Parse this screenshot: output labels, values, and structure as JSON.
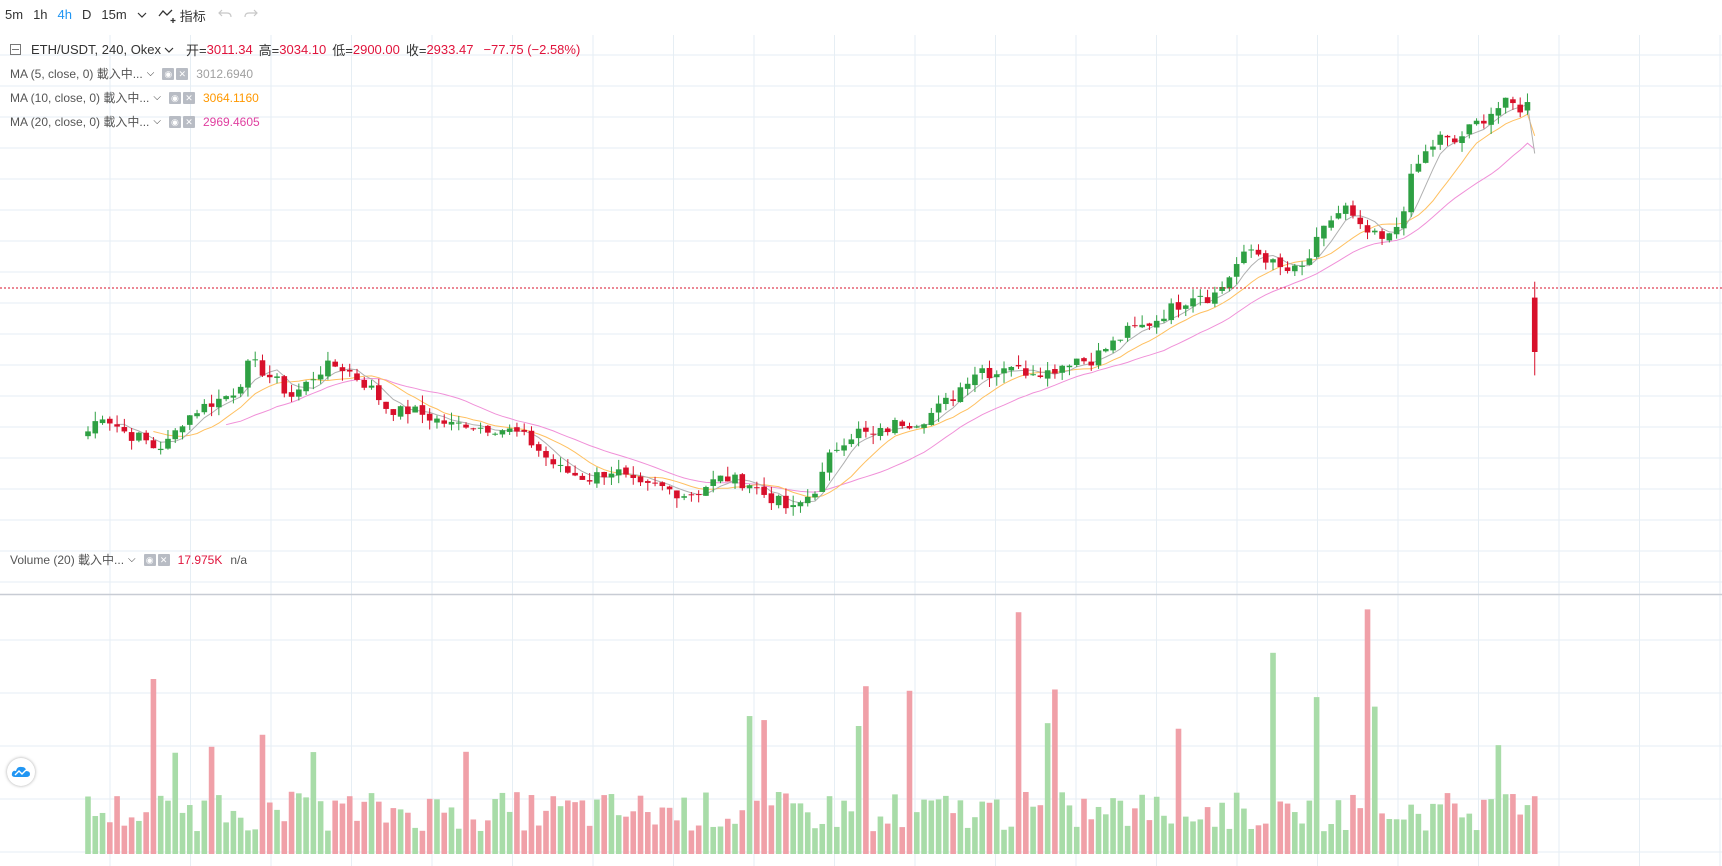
{
  "toolbar": {
    "intervals": [
      "5m",
      "1h",
      "4h",
      "D"
    ],
    "active_interval": "4h",
    "custom_interval": "15m",
    "indicators_label": "指标"
  },
  "legend": {
    "symbol": "ETH/USDT, 240, Okex",
    "open_label": "开=",
    "open": "3011.34",
    "high_label": "高=",
    "high": "3034.10",
    "low_label": "低=",
    "low": "2900.00",
    "close_label": "收=",
    "close": "2933.47",
    "change": "−77.75 (−2.58%)",
    "indicators": [
      {
        "label": "MA (5, close, 0) 載入中...",
        "value": "3012.6940",
        "color": "#a0a0a0"
      },
      {
        "label": "MA (10, close, 0) 載入中...",
        "value": "3064.1160",
        "color": "#ff9800"
      },
      {
        "label": "MA (20, close, 0) 載入中...",
        "value": "2969.4605",
        "color": "#e040a0"
      }
    ],
    "volume": {
      "label": "Volume (20) 載入中...",
      "value": "17.975K",
      "extra": "n/a",
      "value_color": "#e0143c"
    }
  },
  "colors": {
    "up": "#2ea043",
    "down": "#d8102b",
    "vol_up": "#a8dca8",
    "vol_down": "#f0a0a8",
    "grid": "#e6eef4"
  },
  "chart_data": {
    "type": "candlestick",
    "series": [
      {
        "name": "ETH/USDT",
        "type": "ohlc",
        "points": []
      },
      {
        "name": "MA (5, close, 0)",
        "type": "line"
      },
      {
        "name": "MA (10, close, 0)",
        "type": "line"
      },
      {
        "name": "MA (20, close, 0)",
        "type": "line"
      },
      {
        "name": "Volume (20)",
        "type": "bar"
      }
    ],
    "close_path": [
      2820,
      2845,
      2830,
      2815,
      2810,
      2795,
      2805,
      2835,
      2850,
      2860,
      2868,
      2880,
      2920,
      2905,
      2890,
      2870,
      2885,
      2905,
      2915,
      2910,
      2895,
      2880,
      2855,
      2848,
      2850,
      2842,
      2835,
      2828,
      2832,
      2826,
      2825,
      2822,
      2815,
      2800,
      2780,
      2765,
      2758,
      2752,
      2760,
      2765,
      2748,
      2738,
      2742,
      2736,
      2730,
      2733,
      2746,
      2754,
      2749,
      2745,
      2730,
      2720,
      2705,
      2722,
      2742,
      2790,
      2810,
      2820,
      2812,
      2822,
      2834,
      2832,
      2840,
      2855,
      2870,
      2895,
      2912,
      2900,
      2920,
      2905,
      2908,
      2905,
      2915,
      2925,
      2920,
      2935,
      2948,
      2965,
      2970,
      2980,
      2995,
      3005,
      3020,
      3010,
      3030,
      3060,
      3080,
      3070,
      3053,
      3048,
      3055,
      3095,
      3125,
      3140,
      3110,
      3100,
      3090,
      3120,
      3190,
      3220,
      3240,
      3232,
      3250,
      3265,
      3280,
      3290,
      3282,
      3295
    ],
    "ohlc": [],
    "volume": [],
    "ma5": [],
    "ma10": [],
    "ma20": [],
    "last_close": 2933.47
  }
}
